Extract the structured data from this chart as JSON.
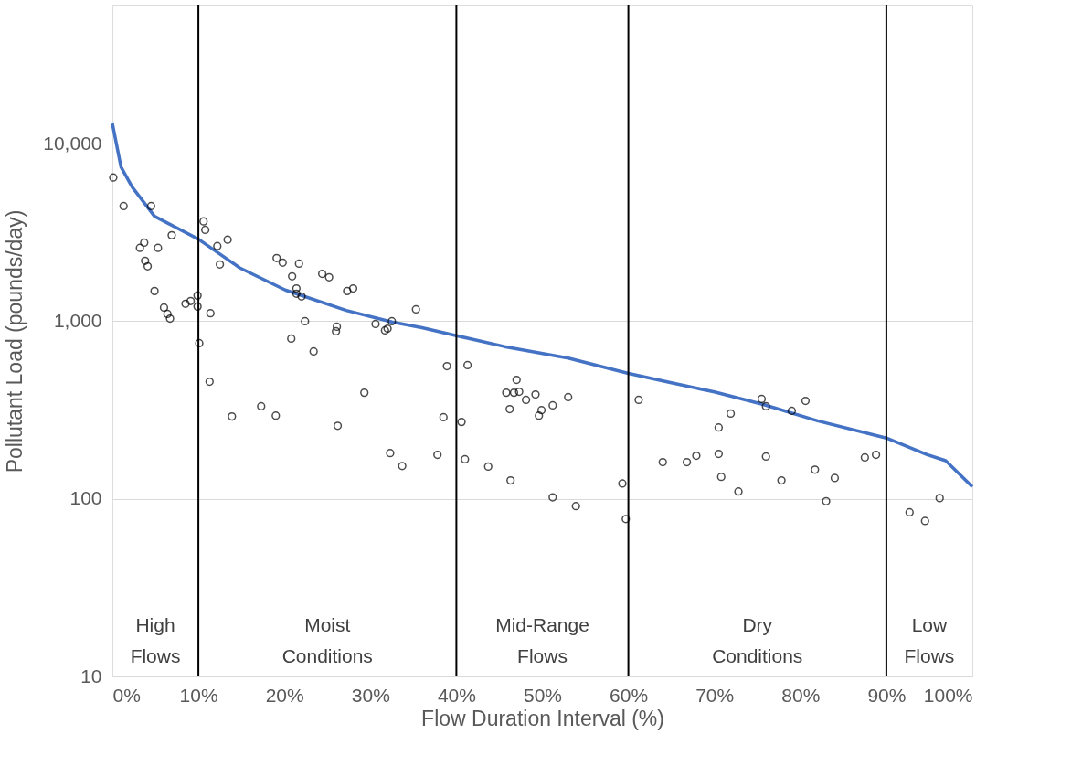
{
  "chart_data": {
    "type": "scatter",
    "xlabel": "Flow Duration Interval (%)",
    "ylabel": "Pollutant Load (pounds/day)",
    "log": "y",
    "grid": "y",
    "xlim": [
      0,
      100
    ],
    "ylim": [
      10,
      60000
    ],
    "xticks": [
      {
        "value": 0,
        "label": "0%"
      },
      {
        "value": 10,
        "label": "10%"
      },
      {
        "value": 20,
        "label": "20%"
      },
      {
        "value": 30,
        "label": "30%"
      },
      {
        "value": 40,
        "label": "40%"
      },
      {
        "value": 50,
        "label": "50%"
      },
      {
        "value": 60,
        "label": "60%"
      },
      {
        "value": 70,
        "label": "70%"
      },
      {
        "value": 80,
        "label": "80%"
      },
      {
        "value": 90,
        "label": "90%"
      },
      {
        "value": 100,
        "label": "100%"
      }
    ],
    "yticks": [
      10,
      100,
      {
        "value": 1000,
        "label": "1,000"
      },
      {
        "value": 10000,
        "label": "10,000"
      }
    ],
    "ref_lines": [
      {
        "axis": "x",
        "value": 10,
        "color": "#000000"
      },
      {
        "axis": "x",
        "value": 40,
        "color": "#000000"
      },
      {
        "axis": "x",
        "value": 60,
        "color": "#000000"
      },
      {
        "axis": "x",
        "value": 90,
        "color": "#000000"
      }
    ],
    "annotations": [
      "High Flows",
      "Moist Conditions",
      "Mid-Range Flows",
      "Dry Conditions",
      "Low Flows"
    ],
    "series": [
      {
        "type": "line",
        "color": "#4472c4",
        "marker": "none",
        "line_style": "solid",
        "x": [
          0,
          1,
          2.3,
          4.9,
          10,
          14.8,
          20.1,
          27.2,
          32.5,
          36,
          40,
          45.6,
          53,
          59.9,
          65,
          70,
          75.7,
          82,
          90,
          94.8,
          96.9,
          100
        ],
        "values": [
          13000,
          7400,
          5700,
          3900,
          2900,
          2000,
          1500,
          1150,
          990,
          920,
          830,
          720,
          620,
          510,
          450,
          400,
          340,
          275,
          220,
          177,
          164,
          117
        ]
      },
      {
        "color": "#000000",
        "marker": "circle",
        "x": [
          0.1,
          1.3,
          4.5,
          3.7,
          3.2,
          3.8,
          4.1,
          5.3,
          6.9,
          4.9,
          6.0,
          6.4,
          6.7,
          8.5,
          9.1,
          9.9,
          9.9,
          10.1,
          10.6,
          10.8,
          11.4,
          11.3,
          12.2,
          12.5,
          13.4,
          13.9,
          17.3,
          19.1,
          19.8,
          19.0,
          20.9,
          21.4,
          21.4,
          21.7,
          22.0,
          22.4,
          20.8,
          23.4,
          24.4,
          25.2,
          27.3,
          28.0,
          26.0,
          26.1,
          26.2,
          29.3,
          30.6,
          31.7,
          32.0,
          32.5,
          32.3,
          33.7,
          35.3,
          37.8,
          38.5,
          38.9,
          41.3,
          40.6,
          41.0,
          43.7,
          46.3,
          45.8,
          46.7,
          47.0,
          47.3,
          46.2,
          48.1,
          49.2,
          49.9,
          49.6,
          51.2,
          53.0,
          51.2,
          53.9,
          59.3,
          59.7,
          61.2,
          64.0,
          66.8,
          67.9,
          70.5,
          70.5,
          71.9,
          70.8,
          72.8,
          75.5,
          76.0,
          76.0,
          77.8,
          79.0,
          80.6,
          81.7,
          83.0,
          84.0,
          87.5,
          88.8,
          92.7,
          94.5,
          96.2
        ],
        "values": [
          6450,
          4450,
          4450,
          2770,
          2590,
          2190,
          2040,
          2590,
          3050,
          1480,
          1195,
          1100,
          1035,
          1255,
          1300,
          1395,
          1210,
          752,
          3650,
          3270,
          1110,
          457,
          2650,
          2090,
          2880,
          291,
          332,
          2270,
          2140,
          294,
          1790,
          1530,
          1430,
          2110,
          1380,
          1000,
          798,
          676,
          1850,
          1770,
          1480,
          1530,
          878,
          931,
          258,
          396,
          965,
          888,
          909,
          1000,
          181,
          153,
          1167,
          177,
          288,
          559,
          566,
          271,
          167,
          152,
          127,
          396,
          396,
          468,
          401,
          320,
          361,
          387,
          316,
          294,
          336,
          374,
          102,
          91,
          122,
          77,
          361,
          161,
          161,
          175,
          179,
          252,
          302,
          133,
          110,
          365,
          332,
          173,
          127,
          313,
          356,
          146,
          97,
          131,
          171,
          177,
          84,
          75,
          101
        ]
      }
    ]
  }
}
